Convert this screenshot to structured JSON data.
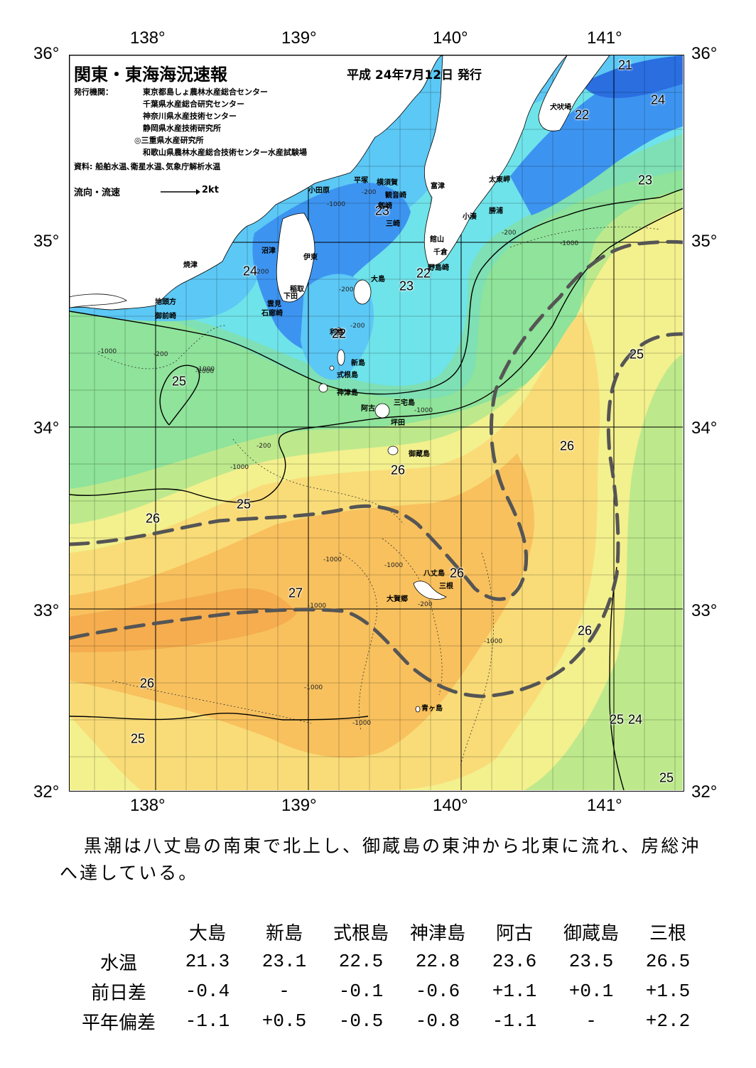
{
  "title": "関東・東海海況速報",
  "issue_date": "平成 24年7月12日 発行",
  "publisher": {
    "label": "発行機関：",
    "orgs": [
      "東京都島しょ農林水産総合センター",
      "千葉県水産総合研究センター",
      "神奈川県水産技術センター",
      "静岡県水産技術研究所",
      "◎三重県水産研究所",
      "和歌山県農林水産総合技術センター水産試験場"
    ]
  },
  "sources": "資料: 船舶水温､衛星水温､気象庁解析水温",
  "flow_legend": {
    "label": "流向・流速",
    "unit": "2kt"
  },
  "axes": {
    "lon_labels": [
      "138°",
      "139°",
      "140°",
      "141°"
    ],
    "lat_labels": [
      "36°",
      "35°",
      "34°",
      "33°",
      "32°"
    ]
  },
  "temperature_labels": [
    "21",
    "24",
    "22",
    "23",
    "24",
    "23",
    "22",
    "23",
    "22",
    "25",
    "26",
    "25",
    "26",
    "26",
    "27",
    "26",
    "26",
    "26",
    "25",
    "24",
    "25",
    "25"
  ],
  "depth_labels": [
    "-200",
    "-1000",
    "-200",
    "-200",
    "-1000",
    "-200",
    "-200",
    "-1000",
    "-1000",
    "-200",
    "-1000",
    "-1000",
    "-1000",
    "-1000",
    "-1000",
    "-1000",
    "-200",
    "-1000",
    "-1000",
    "-200",
    "-1000"
  ],
  "places": [
    "犬吠埼",
    "太東岬",
    "小田原",
    "平塚",
    "横須賀",
    "観音崎",
    "剱崎",
    "三崎",
    "富津",
    "小湊",
    "勝浦",
    "館山",
    "千倉",
    "野島崎",
    "沼津",
    "伊東",
    "焼津",
    "稲取",
    "下田",
    "雲見",
    "石廊崎",
    "地頭方",
    "御前崎",
    "大島",
    "利島",
    "新島",
    "式根島",
    "神津島",
    "三宅島",
    "阿古",
    "坪田",
    "御蔵島",
    "八丈島",
    "三根",
    "大賀郷",
    "青ヶ島"
  ],
  "colors": {
    "cold_deep": "#2a6ee0",
    "cold": "#3d94f0",
    "cool": "#5cc8f5",
    "cyan": "#6fe3ea",
    "teal_green": "#7ee0b4",
    "green": "#8fe39a",
    "light_green": "#bde98c",
    "yellow": "#f3f08e",
    "yellow_orange": "#f9dc78",
    "orange": "#f8c15e",
    "warm_orange": "#f5ad4f",
    "kuroshio_axis": "#555555"
  },
  "summary": "黒潮は八丈島の南東で北上し、御蔵島の東沖から北東に流れ、房総沖へ達している。",
  "observations": {
    "stations": [
      "大島",
      "新島",
      "式根島",
      "神津島",
      "阿古",
      "御蔵島",
      "三根"
    ],
    "rows": [
      {
        "label": "水温",
        "values": [
          "21.3",
          "23.1",
          "22.5",
          "22.8",
          "23.6",
          "23.5",
          "26.5"
        ]
      },
      {
        "label": "前日差",
        "values": [
          "-0.4",
          "-",
          "-0.1",
          "-0.6",
          "+1.1",
          "+0.1",
          "+1.5"
        ]
      },
      {
        "label": "平年偏差",
        "values": [
          "-1.1",
          "+0.5",
          "-0.5",
          "-0.8",
          "-1.1",
          "-",
          "+2.2"
        ]
      }
    ]
  }
}
